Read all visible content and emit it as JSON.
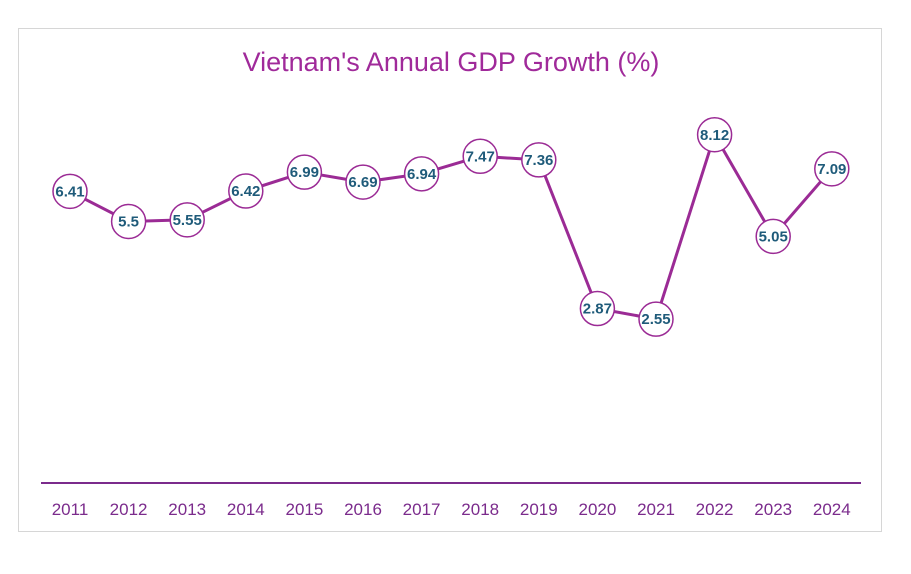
{
  "chart_data": {
    "type": "line",
    "title": "Vietnam's Annual GDP Growth (%)",
    "xlabel": "",
    "ylabel": "",
    "categories": [
      "2011",
      "2012",
      "2013",
      "2014",
      "2015",
      "2016",
      "2017",
      "2018",
      "2019",
      "2020",
      "2021",
      "2022",
      "2023",
      "2024"
    ],
    "series": [
      {
        "values": [
          6.41,
          5.5,
          5.55,
          6.42,
          6.99,
          6.69,
          6.94,
          7.47,
          7.36,
          2.87,
          2.55,
          8.12,
          5.05,
          7.09
        ],
        "labels": [
          "6.41",
          "5.5",
          "5.55",
          "6.42",
          "6.99",
          "6.69",
          "6.94",
          "7.47",
          "7.36",
          "2.87",
          "2.55",
          "8.12",
          "5.05",
          "7.09"
        ]
      }
    ],
    "ylim": [
      -2.4,
      9.2
    ],
    "grid": false,
    "legend": "none",
    "colors": {
      "line": "#9b2b95",
      "marker_stroke": "#9b2b95",
      "marker_fill": "#ffffff",
      "axis": "#7b2b8c",
      "title": "#a02a9a",
      "tick_label": "#7b2b8c",
      "data_label": "#1f5b7a"
    }
  }
}
